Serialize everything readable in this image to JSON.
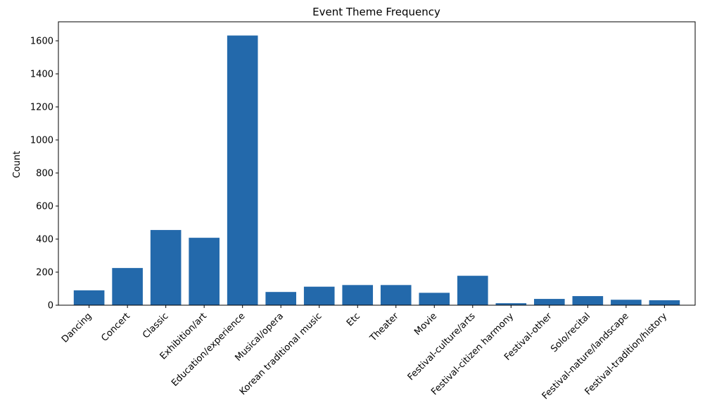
{
  "chart_data": {
    "type": "bar",
    "title": "Event Theme Frequency",
    "xlabel": "",
    "ylabel": "Count",
    "categories": [
      "Dancing",
      "Concert",
      "Classic",
      "Exhibition/art",
      "Education/experience",
      "Musical/opera",
      "Korean traditional music",
      "Etc",
      "Theater",
      "Movie",
      "Festival-culture/arts",
      "Festival-citizen harmony",
      "Festival-other",
      "Solo/recital",
      "Festival-nature/landscape",
      "Festival-tradition/history"
    ],
    "values": [
      90,
      225,
      455,
      408,
      1632,
      80,
      112,
      122,
      122,
      75,
      178,
      12,
      38,
      55,
      33,
      30
    ],
    "ylim": [
      0,
      1715
    ],
    "yticks": [
      0,
      200,
      400,
      600,
      800,
      1000,
      1200,
      1400,
      1600
    ],
    "bar_color": "#2369ab",
    "grid": false,
    "legend": false
  }
}
